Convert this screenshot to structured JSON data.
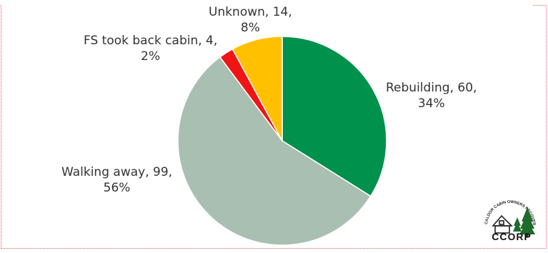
{
  "chart_data": {
    "type": "pie",
    "title": "",
    "slices": [
      {
        "label": "Rebuilding",
        "value": 60,
        "percent": "34%",
        "color": "#00914d"
      },
      {
        "label": "Walking away",
        "value": 99,
        "percent": "56%",
        "color": "#a9bfb2"
      },
      {
        "label": "FS took back cabin",
        "value": 4,
        "percent": "2%",
        "color": "#f01414"
      },
      {
        "label": "Unknown",
        "value": 14,
        "percent": "8%",
        "color": "#ffc000"
      }
    ],
    "start_angle_deg": 0,
    "direction": "clockwise",
    "legend": "none",
    "data_labels": "outside"
  },
  "logo": {
    "name": "CCORP",
    "arc_text": "CALDOR CABIN OWNERS RECOVERY PROJECT"
  }
}
